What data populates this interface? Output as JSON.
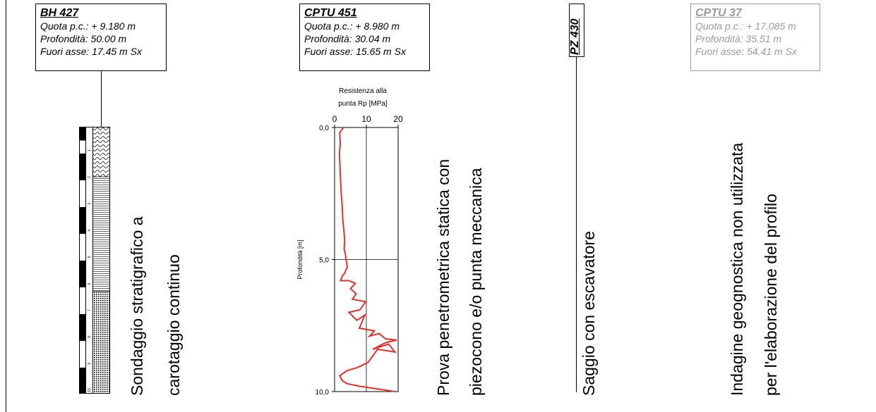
{
  "boreholes": {
    "bh427": {
      "title": "BH 427",
      "quota": "Quota p.c.: + 9.180 m",
      "profondita": "Profondità: 50.00 m",
      "fuori_asse": "Fuori asse: 17.45 m Sx",
      "caption_line1": "Sondaggio stratigrafico a",
      "caption_line2": "carotaggio continuo",
      "depth_ticks": [
        "1",
        "2",
        "3",
        "4",
        "5",
        "6",
        "7",
        "8",
        "9",
        "10"
      ]
    },
    "cptu451": {
      "title": "CPTU 451",
      "quota": "Quota p.c.: + 8.980 m",
      "profondita": "Profondità: 30.04 m",
      "fuori_asse": "Fuori asse: 15.65 m Sx",
      "caption_line1": "Prova penetrometrica statica con",
      "caption_line2": "piezocono e/o punta meccanica"
    },
    "pz430": {
      "title": "PZ 430",
      "caption": "Saggio con escavatore"
    },
    "cptu37": {
      "title": "CPTU 37",
      "quota": "Quota p.c.: + 17.085 m",
      "profondita": "Profondità: 35.51 m",
      "fuori_asse": "Fuori asse: 54.41 m Sx",
      "caption_line1": "Indagine geognostica non utilizzata",
      "caption_line2": "per l'elaborazione del profilo"
    }
  },
  "colors": {
    "curve": "#e03030",
    "grey": "#9a9a9a",
    "line": "#000000"
  },
  "chart_data": {
    "type": "line",
    "title": "",
    "xlabel": "Resistenza alla punta Rp [MPa]",
    "ylabel": "Profondità [m]",
    "xlim": [
      0,
      20
    ],
    "ylim": [
      0,
      10
    ],
    "y_inverted": true,
    "x_ticks": [
      "0",
      "10",
      "20"
    ],
    "y_ticks": [
      "0,0",
      "5,0",
      "10,0"
    ],
    "grid": true,
    "series": [
      {
        "x": [
          2.8,
          1.6,
          1.8,
          1.5,
          1.7,
          1.9,
          2.1,
          2.4,
          2.6,
          3.0,
          3.2,
          3.0,
          3.4,
          3.6,
          3.8,
          4.0,
          3.5,
          3.3,
          2.5,
          1.9,
          4.5,
          6.5,
          5.0,
          6.8,
          5.6,
          9.8,
          8.0,
          4.5,
          7.0,
          9.5,
          7.8,
          12.5,
          11.0,
          14.0,
          16.0,
          19.5,
          16.0,
          12.0,
          17.0,
          19.0,
          13.5,
          10.5,
          7.0,
          4.0,
          1.6,
          2.5,
          4.0,
          8.0,
          19.0
        ],
        "y": [
          0.0,
          0.2,
          0.6,
          1.0,
          1.5,
          2.0,
          2.5,
          3.0,
          3.5,
          4.0,
          4.3,
          4.6,
          4.8,
          5.0,
          5.1,
          5.3,
          5.4,
          5.5,
          5.6,
          5.8,
          5.8,
          5.9,
          6.1,
          6.3,
          6.5,
          6.6,
          6.9,
          7.0,
          7.3,
          7.1,
          7.6,
          7.7,
          7.9,
          7.8,
          8.0,
          8.05,
          8.15,
          8.4,
          8.2,
          8.5,
          8.4,
          8.9,
          9.1,
          9.2,
          9.4,
          9.6,
          9.7,
          9.8,
          10.0
        ]
      }
    ]
  }
}
